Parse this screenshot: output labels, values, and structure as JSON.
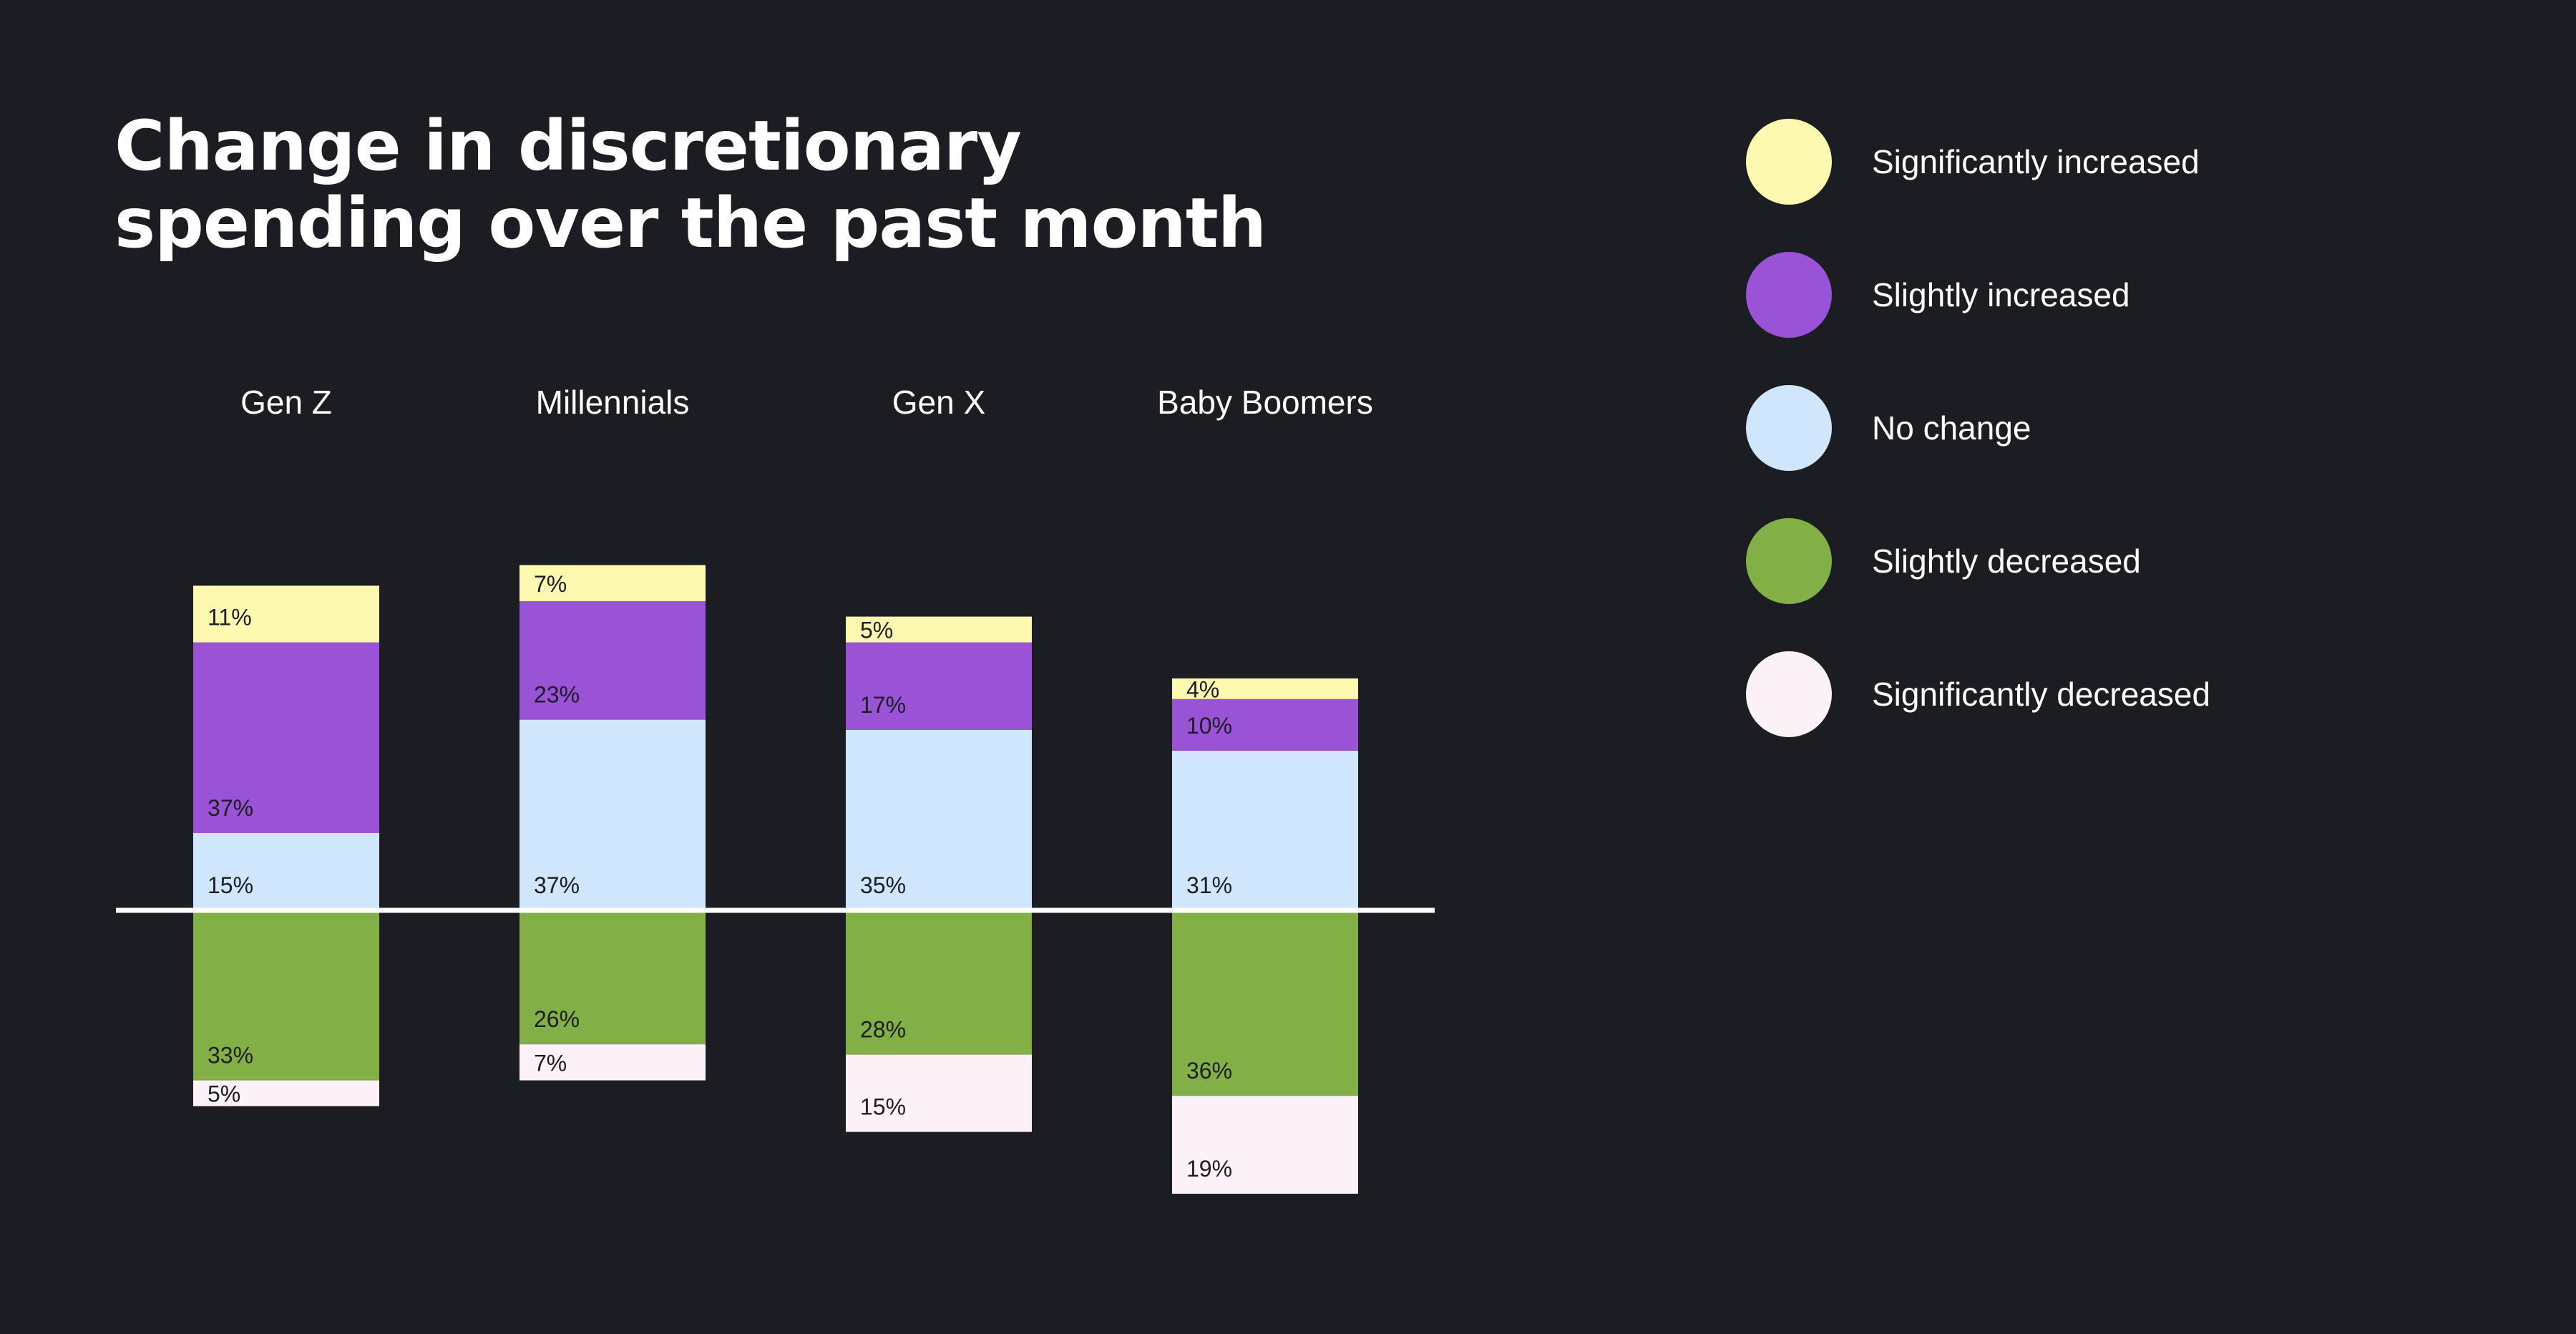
{
  "title_lines": [
    "Change in discretionary",
    "spending over the past month"
  ],
  "legend": [
    {
      "label": "Significantly increased",
      "color": "#fef9b0"
    },
    {
      "label": "Slightly increased",
      "color": "#9a52d6"
    },
    {
      "label": "No change",
      "color": "#d0e6fc"
    },
    {
      "label": "Slightly decreased",
      "color": "#82b046"
    },
    {
      "label": "Significantly decreased",
      "color": "#fdf1f8"
    }
  ],
  "chart_data": {
    "type": "bar",
    "stacked": "diverging",
    "title": "Change in discretionary spending over the past month",
    "categories": [
      "Gen Z",
      "Millennials",
      "Gen X",
      "Baby Boomers"
    ],
    "series": [
      {
        "name": "Significantly increased",
        "color": "#fef9b0",
        "values": [
          11,
          7,
          5,
          4
        ],
        "labels": [
          "11%",
          "7%",
          "5%",
          "4%"
        ],
        "side": "above"
      },
      {
        "name": "Slightly increased",
        "color": "#9a52d6",
        "values": [
          37,
          23,
          17,
          10
        ],
        "labels": [
          "37%",
          "23%",
          "17%",
          "10%"
        ],
        "side": "above"
      },
      {
        "name": "No change",
        "color": "#d0e6fc",
        "values": [
          15,
          37,
          35,
          31
        ],
        "labels": [
          "15%",
          "37%",
          "35%",
          "31%"
        ],
        "side": "above"
      },
      {
        "name": "Slightly decreased",
        "color": "#82b046",
        "values": [
          33,
          26,
          28,
          36
        ],
        "labels": [
          "33%",
          "26%",
          "28%",
          "36%"
        ],
        "side": "below"
      },
      {
        "name": "Significantly decreased",
        "color": "#fdf1f8",
        "values": [
          5,
          7,
          15,
          19
        ],
        "labels": [
          "5%",
          "7%",
          "15%",
          "19%"
        ],
        "side": "below"
      }
    ],
    "baseline": 0,
    "grid": false,
    "legend_position": "right"
  }
}
